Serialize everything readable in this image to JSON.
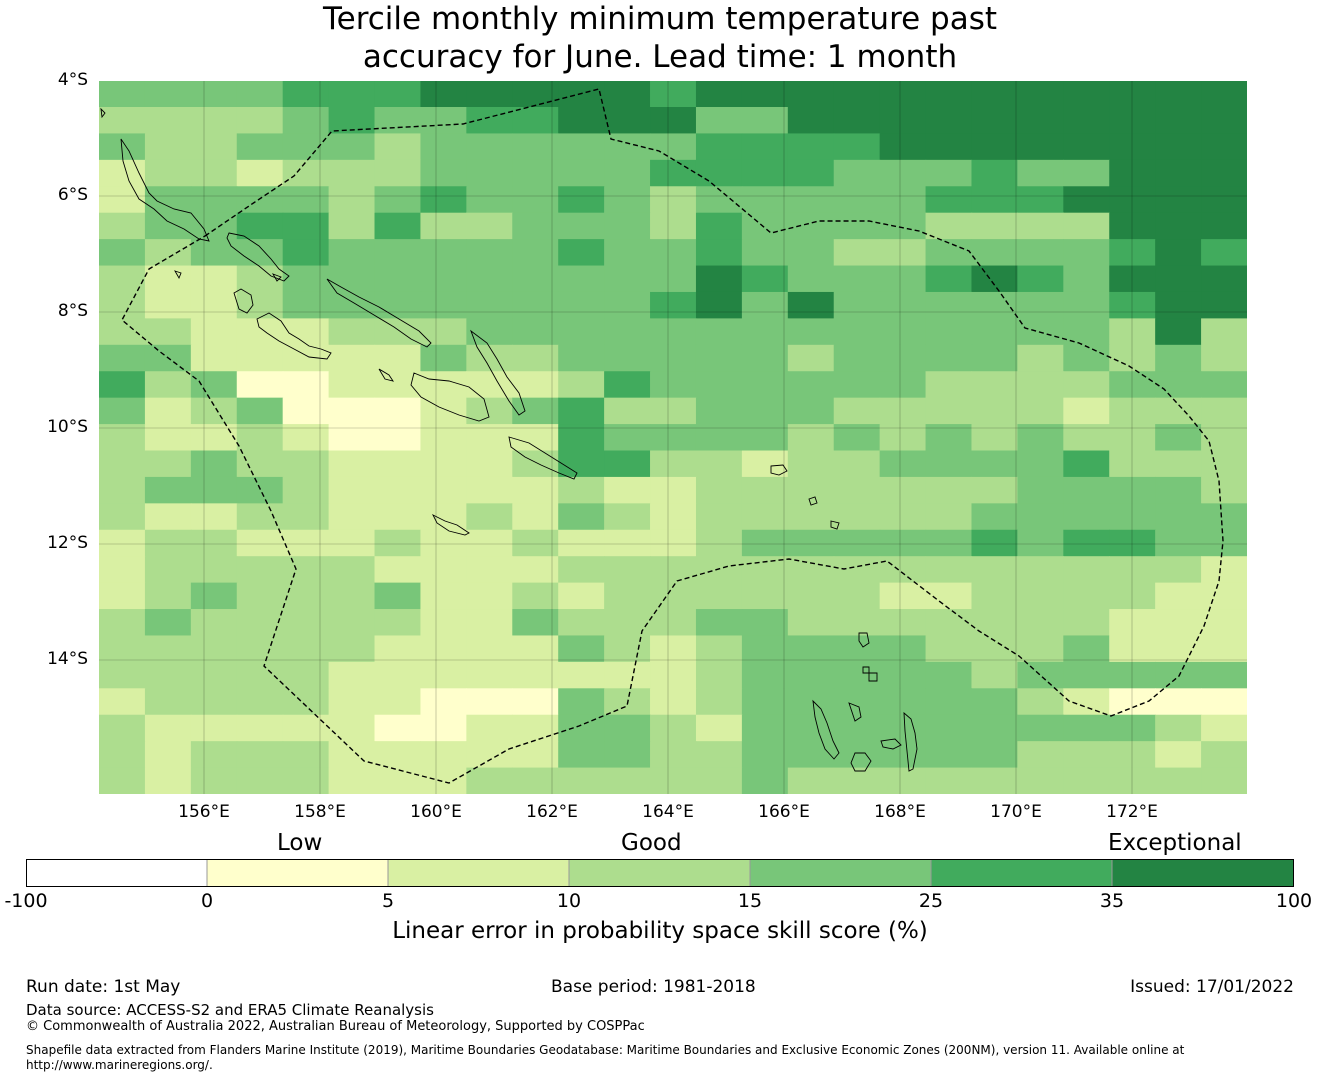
{
  "title": {
    "line1": "Tercile monthly minimum temperature past",
    "line2": "accuracy for June. Lead time: 1 month"
  },
  "map": {
    "lat_labels": [
      "4°S",
      "6°S",
      "8°S",
      "10°S",
      "12°S",
      "14°S"
    ],
    "lon_labels": [
      "156°E",
      "158°E",
      "160°E",
      "162°E",
      "164°E",
      "166°E",
      "168°E",
      "170°E",
      "172°E"
    ],
    "extent": {
      "lon_min": 154.2,
      "lon_max": 174.0,
      "lat_min": -16.3,
      "lat_max": -4.0
    }
  },
  "legend": {
    "categories": [
      "Low",
      "Good",
      "Exceptional"
    ],
    "ticks": [
      "-100",
      "0",
      "5",
      "10",
      "15",
      "25",
      "35",
      "100"
    ],
    "colors": [
      "#ffffff",
      "#ffffcc",
      "#d9f0a3",
      "#addd8e",
      "#78c679",
      "#41ab5d",
      "#238443"
    ],
    "label": "Linear error in probability space skill score (%)"
  },
  "footer": {
    "run_date": "Run date: 1st May",
    "base_period": "Base period: 1981-2018",
    "issued": "Issued: 17/01/2022",
    "data_source": "Data source: ACCESS-S2 and ERA5 Climate Reanalysis",
    "copyright": "© Commonwealth of Australia 2022, Australian Bureau of Meteorology, Supported by COSPPac",
    "shapefile_line1": "Shapefile data extracted from Flanders Marine Institute (2019), Maritime Boundaries Geodatabase: Maritime Boundaries and Exclusive Economic Zones (200NM), version 11. Available online at",
    "shapefile_line2": "http://www.marineregions.org/."
  },
  "grid_levels": [
    "4444555666665666666666666",
    "3333454455666446666666666",
    "4334443444444555566666666",
    "2332333444445555444544666",
    "2444434544543444445556666",
    "3445535334443544443333666",
    "4344544444544544334444565",
    "3223444444444654445654666",
    "3223444444445646444444566",
    "3322233344444444444444363",
    "4422222433444443444434343",
    "5341122222354444443333444",
    "4234111234533444333332333",
    "3223211222544443434343343",
    "3343322223553323344445333",
    "3444322222322333333344443",
    "3223322232432333333444444",
    "2332223223222344444545544",
    "2333332222333333333333332",
    "2343334223233333322333322",
    "3433333224333443333333222",
    "3333332222432344443334222",
    "3333322222222344444344444",
    "2333322111432344444432111",
    "3222221122443244444444432",
    "3233322222443344444433323",
    "3233322233333343333333333"
  ]
}
